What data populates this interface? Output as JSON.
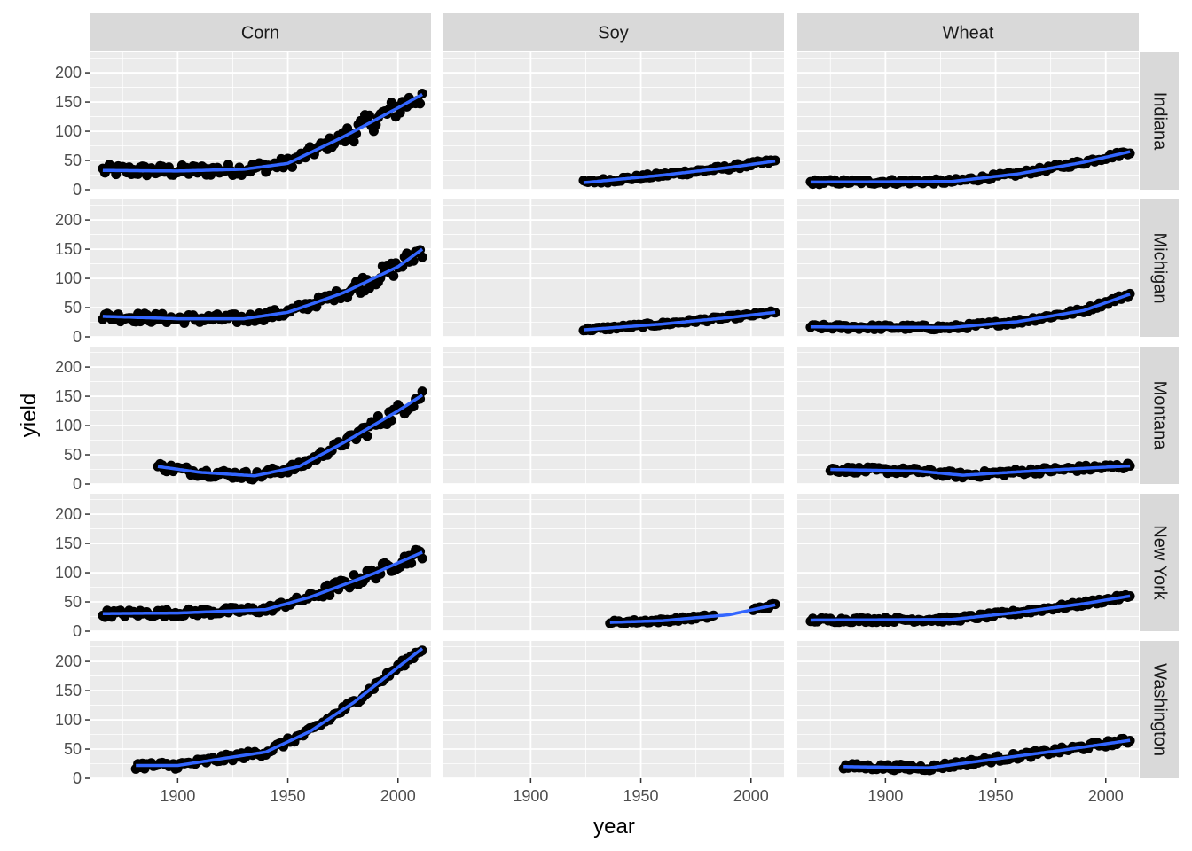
{
  "chart_data": {
    "type": "scatter",
    "facet_cols": [
      "Corn",
      "Soy",
      "Wheat"
    ],
    "facet_rows": [
      "Indiana",
      "Michigan",
      "Montana",
      "New York",
      "Washington"
    ],
    "xlabel": "year",
    "ylabel": "yield",
    "xlim": [
      1860,
      2015
    ],
    "ylim": [
      0,
      235
    ],
    "x_ticks": [
      1900,
      1950,
      2000
    ],
    "y_ticks": [
      0,
      50,
      100,
      150,
      200
    ],
    "grid": true,
    "colors": {
      "panel_bg": "#EBEBEB",
      "grid": "#FFFFFF",
      "strip_bg": "#D9D9D9",
      "points": "#000000",
      "trend": "#3366FF"
    },
    "panels": [
      {
        "row": "Indiana",
        "col": "Corn",
        "range": [
          1866,
          2011
        ],
        "trend": [
          [
            1866,
            33
          ],
          [
            1900,
            32
          ],
          [
            1930,
            35
          ],
          [
            1950,
            45
          ],
          [
            1975,
            90
          ],
          [
            2000,
            140
          ],
          [
            2011,
            163
          ]
        ],
        "jitter": 10,
        "noisy_after": 1975
      },
      {
        "row": "Indiana",
        "col": "Soy",
        "range": [
          1924,
          2011
        ],
        "trend": [
          [
            1924,
            12
          ],
          [
            1960,
            25
          ],
          [
            1990,
            38
          ],
          [
            2011,
            49
          ]
        ],
        "jitter": 4
      },
      {
        "row": "Indiana",
        "col": "Wheat",
        "range": [
          1866,
          2011
        ],
        "trend": [
          [
            1866,
            13
          ],
          [
            1930,
            14
          ],
          [
            1960,
            27
          ],
          [
            1990,
            47
          ],
          [
            2011,
            65
          ]
        ],
        "jitter": 4
      },
      {
        "row": "Michigan",
        "col": "Corn",
        "range": [
          1866,
          2011
        ],
        "trend": [
          [
            1866,
            35
          ],
          [
            1900,
            31
          ],
          [
            1930,
            31
          ],
          [
            1950,
            42
          ],
          [
            1975,
            75
          ],
          [
            2000,
            120
          ],
          [
            2011,
            150
          ]
        ],
        "jitter": 8,
        "noisy_after": 1975
      },
      {
        "row": "Michigan",
        "col": "Soy",
        "range": [
          1924,
          2011
        ],
        "trend": [
          [
            1924,
            12
          ],
          [
            1960,
            22
          ],
          [
            1990,
            33
          ],
          [
            2011,
            42
          ]
        ],
        "jitter": 3
      },
      {
        "row": "Michigan",
        "col": "Wheat",
        "range": [
          1866,
          2011
        ],
        "trend": [
          [
            1866,
            17
          ],
          [
            1930,
            16
          ],
          [
            1960,
            26
          ],
          [
            1990,
            45
          ],
          [
            2011,
            73
          ]
        ],
        "jitter": 4
      },
      {
        "row": "Montana",
        "col": "Corn",
        "range": [
          1891,
          2011
        ],
        "trend": [
          [
            1891,
            30
          ],
          [
            1910,
            20
          ],
          [
            1935,
            14
          ],
          [
            1955,
            30
          ],
          [
            1975,
            70
          ],
          [
            2000,
            125
          ],
          [
            2011,
            152
          ]
        ],
        "jitter": 7,
        "noisy_after": 1980
      },
      {
        "row": "Montana",
        "col": "Wheat",
        "range": [
          1875,
          2011
        ],
        "trend": [
          [
            1875,
            25
          ],
          [
            1915,
            22
          ],
          [
            1935,
            15
          ],
          [
            1970,
            23
          ],
          [
            2011,
            31
          ]
        ],
        "jitter": 5
      },
      {
        "row": "New York",
        "col": "Corn",
        "range": [
          1866,
          2011
        ],
        "trend": [
          [
            1866,
            30
          ],
          [
            1900,
            31
          ],
          [
            1940,
            37
          ],
          [
            1960,
            58
          ],
          [
            1990,
            100
          ],
          [
            2011,
            135
          ]
        ],
        "jitter": 6,
        "noisy_after": 1965
      },
      {
        "row": "New York",
        "col": "Soy",
        "range": [
          1936,
          2011
        ],
        "trend": [
          [
            1936,
            15
          ],
          [
            1960,
            18
          ],
          [
            1990,
            28
          ],
          [
            2011,
            45
          ]
        ],
        "jitter": 3,
        "gaps": [
          [
            1983,
            2001
          ]
        ]
      },
      {
        "row": "New York",
        "col": "Wheat",
        "range": [
          1866,
          2011
        ],
        "trend": [
          [
            1866,
            19
          ],
          [
            1930,
            20
          ],
          [
            1960,
            32
          ],
          [
            1990,
            47
          ],
          [
            2011,
            60
          ]
        ],
        "jitter": 4
      },
      {
        "row": "Washington",
        "col": "Corn",
        "range": [
          1881,
          2011
        ],
        "trend": [
          [
            1881,
            22
          ],
          [
            1900,
            22
          ],
          [
            1940,
            45
          ],
          [
            1960,
            80
          ],
          [
            1980,
            130
          ],
          [
            2000,
            190
          ],
          [
            2011,
            222
          ]
        ],
        "jitter": 6
      },
      {
        "row": "Washington",
        "col": "Wheat",
        "range": [
          1881,
          2011
        ],
        "trend": [
          [
            1881,
            20
          ],
          [
            1920,
            18
          ],
          [
            1950,
            33
          ],
          [
            1980,
            48
          ],
          [
            2011,
            65
          ]
        ],
        "jitter": 5
      }
    ]
  }
}
